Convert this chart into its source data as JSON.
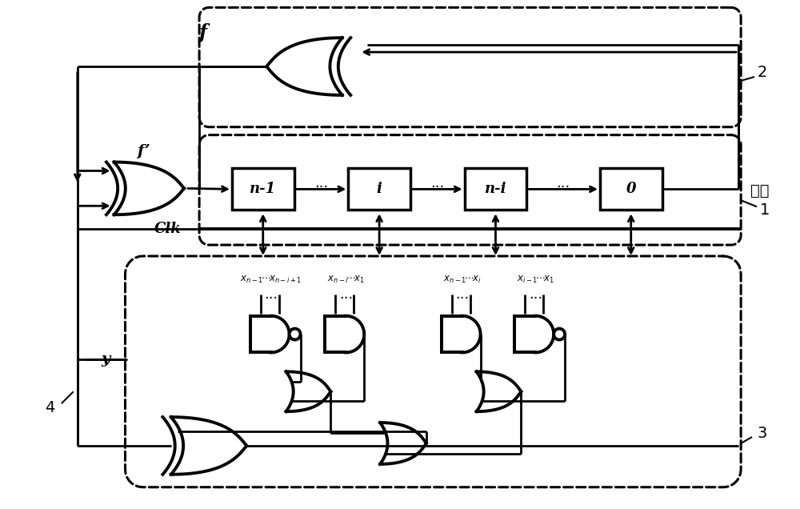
{
  "bg_color": "#ffffff",
  "line_color": "#000000",
  "box_labels": [
    "n-1",
    "i",
    "n-i",
    "0"
  ],
  "label_2": "2",
  "label_1": "1",
  "label_3": "3",
  "label_4": "4",
  "label_f": "f",
  "label_fp": "f’",
  "label_clk": "Clk",
  "label_y": "y",
  "label_output": "输出",
  "sub_labels": [
    "$x_{n-1}\\!\\cdots\\! x_{n-i+1}$",
    "$x_{n-i}\\!\\cdots\\! x_1$",
    "$x_{n-1}\\!\\cdots\\! x_i$",
    "$x_{i-1}\\!\\cdots\\! x_1$"
  ]
}
